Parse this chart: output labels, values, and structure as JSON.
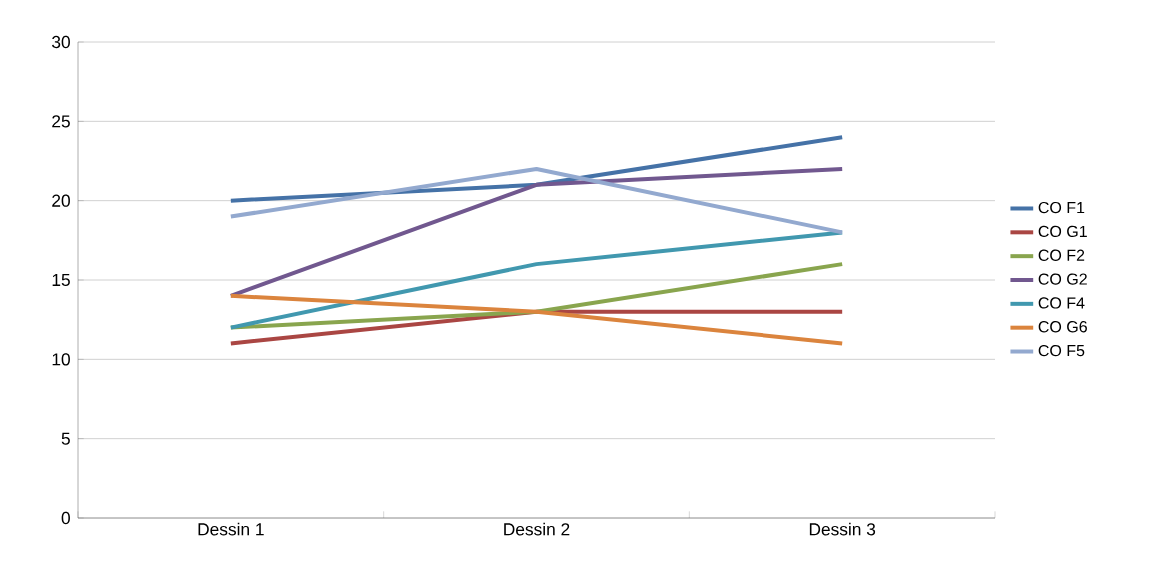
{
  "chart_data": {
    "type": "line",
    "categories": [
      "Dessin 1",
      "Dessin 2",
      "Dessin 3"
    ],
    "series": [
      {
        "name": "CO F1",
        "color": "#4572a7",
        "values": [
          20,
          21,
          24
        ]
      },
      {
        "name": "CO G1",
        "color": "#aa4643",
        "values": [
          11,
          13,
          13
        ]
      },
      {
        "name": "CO F2",
        "color": "#89a54e",
        "values": [
          12,
          13,
          16
        ]
      },
      {
        "name": "CO G2",
        "color": "#71588f",
        "values": [
          14,
          21,
          22
        ]
      },
      {
        "name": "CO F4",
        "color": "#4198af",
        "values": [
          12,
          16,
          18
        ]
      },
      {
        "name": "CO G6",
        "color": "#db843d",
        "values": [
          14,
          13,
          11
        ]
      },
      {
        "name": "CO F5",
        "color": "#93a9cf",
        "values": [
          19,
          22,
          18
        ]
      }
    ],
    "ylim": [
      0,
      30
    ],
    "yticks": [
      0,
      5,
      10,
      15,
      20,
      25,
      30
    ],
    "grid": "y",
    "legend": "right",
    "marker": "none",
    "line_style": "solid"
  }
}
